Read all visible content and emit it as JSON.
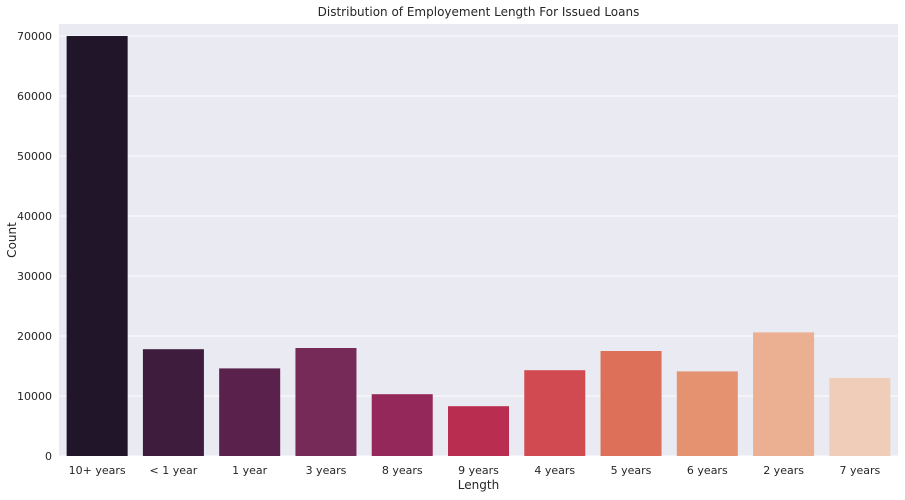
{
  "chart_data": {
    "type": "bar",
    "title": "Distribution of Employement Length For Issued Loans",
    "xlabel": "Length",
    "ylabel": "Count",
    "categories": [
      "10+ years",
      "< 1 year",
      "1 year",
      "3 years",
      "8 years",
      "9 years",
      "4 years",
      "5 years",
      "6 years",
      "2 years",
      "7 years"
    ],
    "values": [
      70000,
      17800,
      14600,
      18000,
      10300,
      8300,
      14300,
      17500,
      14100,
      20600,
      13000
    ],
    "colors": [
      "#211529",
      "#3e1c3e",
      "#5a214d",
      "#762a57",
      "#95285a",
      "#b92d51",
      "#d24a51",
      "#dd7059",
      "#e59271",
      "#ebb091",
      "#efcdb8"
    ],
    "ylim": [
      0,
      72000
    ],
    "yticks": [
      0,
      10000,
      20000,
      30000,
      40000,
      50000,
      60000,
      70000
    ],
    "ytick_labels": [
      "0",
      "10000",
      "20000",
      "30000",
      "40000",
      "50000",
      "60000",
      "70000"
    ],
    "grid": true,
    "background_color": "#eaeaf2",
    "grid_color": "#ffffff"
  }
}
